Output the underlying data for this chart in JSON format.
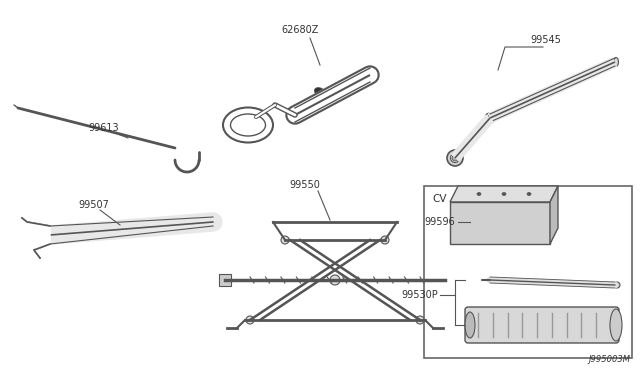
{
  "background_color": "#ffffff",
  "line_color": "#555555",
  "text_color": "#333333",
  "diagram_label": "J995003M",
  "cv_label": "CV"
}
